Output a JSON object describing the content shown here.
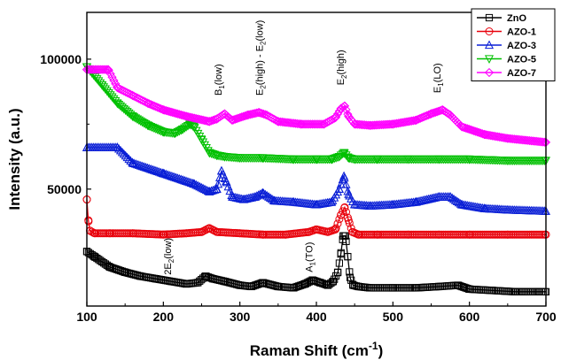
{
  "chart_data": {
    "type": "line",
    "xlabel": "Raman Shift (cm",
    "xlabel_sup": "-1",
    "xlabel_close": ")",
    "ylabel": "Intensity (a.u.)",
    "xlim": [
      100,
      700
    ],
    "ylim": [
      5000,
      118000
    ],
    "x_ticks": [
      100,
      200,
      300,
      400,
      500,
      600,
      700
    ],
    "x_tick_labels": [
      "100",
      "200",
      "300",
      "400",
      "500",
      "600",
      "700"
    ],
    "y_ticks": [
      50000,
      100000
    ],
    "y_tick_labels": [
      "50000",
      "100000"
    ],
    "grid": false,
    "legend_position": "top-right",
    "series": [
      {
        "name": "ZnO",
        "color": "#000000",
        "marker": "square",
        "x": [
          100,
          110,
          130,
          150,
          170,
          190,
          210,
          230,
          245,
          255,
          265,
          280,
          300,
          315,
          330,
          350,
          370,
          385,
          395,
          405,
          415,
          422,
          428,
          432,
          435,
          438,
          441,
          444,
          448,
          455,
          470,
          500,
          530,
          560,
          585,
          600,
          630,
          660,
          690,
          700
        ],
        "y": [
          26000,
          24000,
          20000,
          18000,
          16500,
          15500,
          14500,
          13500,
          14000,
          16500,
          15500,
          14500,
          13000,
          12500,
          14000,
          12500,
          12000,
          13500,
          15000,
          14000,
          13000,
          14500,
          18000,
          25000,
          32000,
          32000,
          24000,
          16000,
          13000,
          12500,
          12000,
          12000,
          12000,
          12500,
          13000,
          11500,
          11000,
          10500,
          10500,
          10500
        ]
      },
      {
        "name": "AZO-1",
        "color": "#e8000b",
        "marker": "circle",
        "x": [
          100,
          102,
          104,
          110,
          130,
          160,
          200,
          230,
          250,
          260,
          270,
          300,
          330,
          360,
          390,
          400,
          415,
          425,
          432,
          437,
          442,
          447,
          455,
          480,
          520,
          560,
          600,
          650,
          700
        ],
        "y": [
          46000,
          38000,
          34000,
          33000,
          33000,
          33000,
          32500,
          33000,
          33500,
          35000,
          33500,
          33000,
          32500,
          32500,
          33500,
          34500,
          33500,
          34500,
          40000,
          43000,
          38000,
          33500,
          32500,
          32500,
          32500,
          32500,
          32500,
          32500,
          32500
        ]
      },
      {
        "name": "AZO-3",
        "color": "#0a1fd6",
        "marker": "triangle-up",
        "x": [
          100,
          140,
          160,
          200,
          240,
          260,
          270,
          276,
          282,
          290,
          305,
          320,
          330,
          345,
          370,
          400,
          420,
          430,
          436,
          442,
          450,
          470,
          500,
          530,
          560,
          575,
          590,
          620,
          650,
          700
        ],
        "y": [
          66000,
          66000,
          60000,
          56000,
          52000,
          49000,
          50000,
          57000,
          53000,
          47000,
          46000,
          47000,
          48500,
          45500,
          45000,
          44000,
          45000,
          50000,
          55000,
          48000,
          44000,
          43500,
          44000,
          45000,
          47000,
          47000,
          44000,
          42500,
          42000,
          41500
        ]
      },
      {
        "name": "AZO-5",
        "color": "#00c000",
        "marker": "triangle-down",
        "x": [
          100,
          120,
          140,
          160,
          180,
          200,
          215,
          225,
          235,
          240,
          250,
          260,
          270,
          280,
          300,
          330,
          370,
          400,
          420,
          430,
          436,
          442,
          450,
          480,
          520,
          560,
          600,
          650,
          700
        ],
        "y": [
          97000,
          90000,
          83000,
          78000,
          74500,
          72000,
          71500,
          73000,
          75000,
          74000,
          69000,
          64000,
          63000,
          62500,
          62000,
          62000,
          61500,
          61500,
          61500,
          62500,
          64000,
          62000,
          61500,
          61500,
          61500,
          61500,
          61500,
          61000,
          61000
        ]
      },
      {
        "name": "AZO-7",
        "color": "#ff00ff",
        "marker": "diamond",
        "x": [
          100,
          128,
          140,
          160,
          180,
          200,
          230,
          260,
          270,
          280,
          290,
          310,
          325,
          335,
          350,
          380,
          410,
          425,
          432,
          437,
          442,
          450,
          470,
          500,
          530,
          550,
          565,
          575,
          590,
          620,
          650,
          700
        ],
        "y": [
          96000,
          96000,
          89000,
          86000,
          83000,
          80500,
          78000,
          76000,
          77000,
          79000,
          76500,
          78500,
          79500,
          78500,
          76000,
          75000,
          75000,
          77500,
          81000,
          82000,
          78000,
          75000,
          74500,
          75000,
          76500,
          79000,
          80500,
          78500,
          74000,
          71000,
          69500,
          68000
        ]
      }
    ]
  },
  "annotations": [
    {
      "base": "2E",
      "sub": "2",
      "tail": "(low)",
      "x": 210,
      "y": 17000,
      "rotate": -90
    },
    {
      "base": "A",
      "sub": "1",
      "tail": "(TO)",
      "x": 395,
      "y": 18000,
      "rotate": -90
    },
    {
      "base": "B",
      "sub": "1",
      "tail": "(low)",
      "x": 276,
      "y": 86000,
      "rotate": -90
    },
    {
      "base": "E",
      "sub": "2",
      "tail": "(high) - E",
      "sub2": "2",
      "tail2": "(low)",
      "x": 330,
      "y": 86000,
      "rotate": -90
    },
    {
      "base": "E",
      "sub": "2",
      "tail": "(high)",
      "x": 436,
      "y": 90000,
      "rotate": -90
    },
    {
      "base": "E",
      "sub": "1",
      "tail": "(LO)",
      "x": 562,
      "y": 87000,
      "rotate": -90
    }
  ]
}
